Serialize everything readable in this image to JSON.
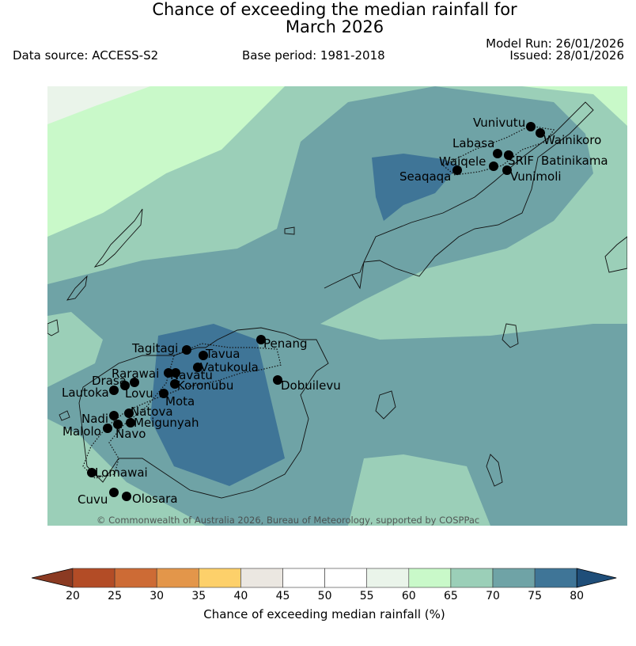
{
  "title": {
    "line1": "Chance of exceeding the median rainfall for",
    "line2": "March 2026"
  },
  "meta": {
    "data_source": "Data source: ACCESS-S2",
    "base_period": "Base period: 1981-2018",
    "model_run": "Model Run: 26/01/2026",
    "issued": "Issued: 28/01/2026"
  },
  "map": {
    "locations": [
      {
        "name": "Vunivutu"
      },
      {
        "name": "Wainikoro"
      },
      {
        "name": "Labasa"
      },
      {
        "name": "SRIF"
      },
      {
        "name": "Batinikama"
      },
      {
        "name": "Waiqele"
      },
      {
        "name": "Seaqaqa"
      },
      {
        "name": "Vunimoli"
      },
      {
        "name": "Penang"
      },
      {
        "name": "Tagitagi"
      },
      {
        "name": "Tavua"
      },
      {
        "name": "Vatukoula"
      },
      {
        "name": "Rarawai"
      },
      {
        "name": "Navatu"
      },
      {
        "name": "Drasa"
      },
      {
        "name": "Koronubu"
      },
      {
        "name": "Lautoka"
      },
      {
        "name": "Lovu"
      },
      {
        "name": "Mota"
      },
      {
        "name": "Dobuilevu"
      },
      {
        "name": "Natova"
      },
      {
        "name": "Nadi"
      },
      {
        "name": "Meigunyah"
      },
      {
        "name": "Malolo"
      },
      {
        "name": "Navo"
      },
      {
        "name": "Lomawai"
      },
      {
        "name": "Cuvu"
      },
      {
        "name": "Olosara"
      }
    ],
    "copyright": "© Commonwealth of Australia 2026, Bureau of Meteorology, supported by COSPPac"
  },
  "colorbar": {
    "ticks": [
      "20",
      "25",
      "30",
      "35",
      "40",
      "45",
      "50",
      "55",
      "60",
      "65",
      "70",
      "75",
      "80"
    ],
    "colors": [
      "#b34c26",
      "#cd6b35",
      "#e3964a",
      "#fdd06a",
      "#ebe7e1",
      "#ffffff",
      "#ffffff",
      "#eaf4ea",
      "#c9f9c9",
      "#9bcfb8",
      "#6fa3a6",
      "#3f7597"
    ],
    "under_color": "#8b3a22",
    "over_color": "#1f4e79",
    "label": "Chance of exceeding median rainfall (%)"
  }
}
